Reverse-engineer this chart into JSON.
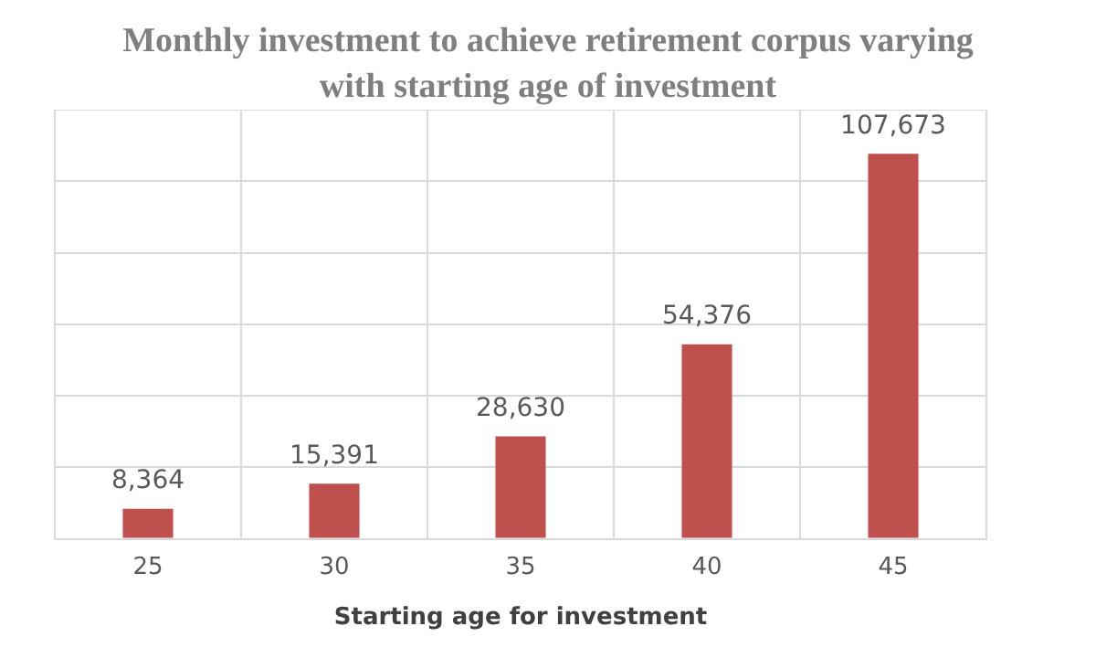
{
  "chart_data": {
    "type": "bar",
    "title": "Monthly investment to achieve retirement corpus varying with starting age of investment",
    "xlabel": "Starting age for investment",
    "categories": [
      "25",
      "30",
      "35",
      "40",
      "45"
    ],
    "values": [
      8364,
      15391,
      28630,
      54376,
      107673
    ],
    "color": "#c0504d",
    "value_labels": [
      "8,364",
      "15,391",
      "28,630",
      "54,376",
      "107,673"
    ],
    "grid": true,
    "legend": false
  }
}
